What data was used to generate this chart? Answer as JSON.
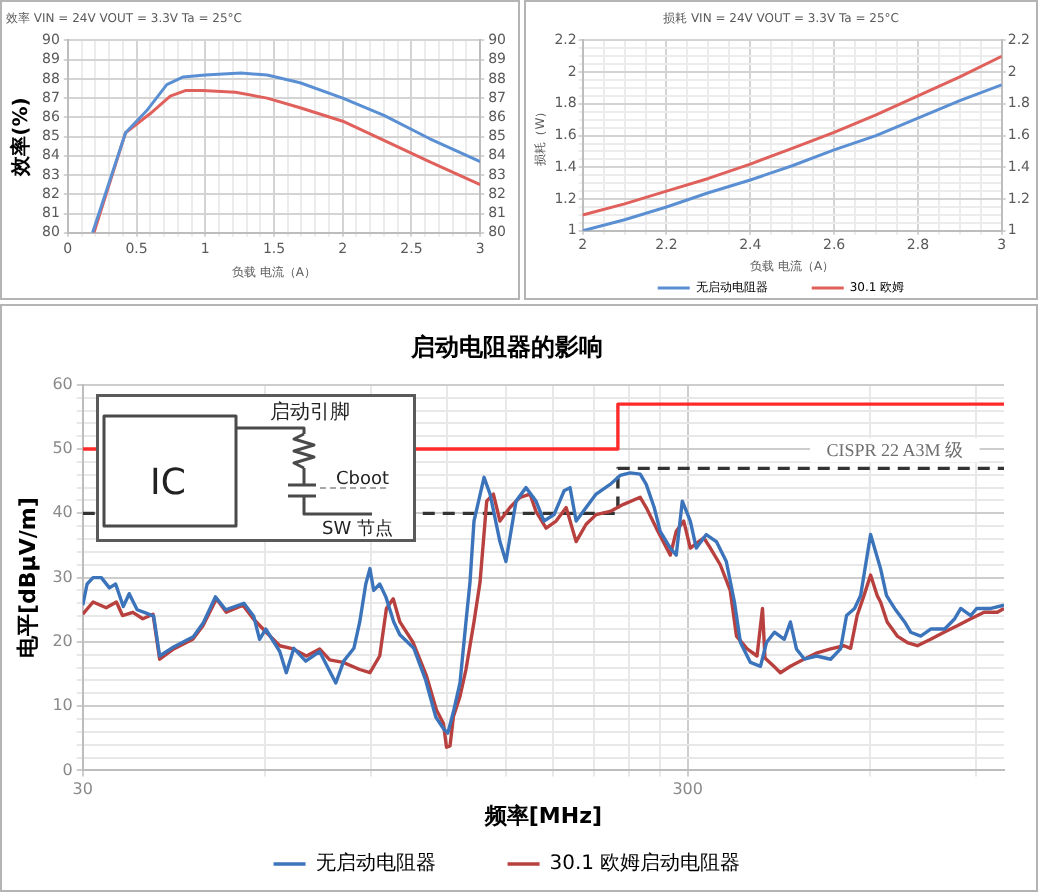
{
  "chart_data": [
    {
      "type": "line",
      "title": "效率 VIN = 24V VOUT = 3.3V Ta = 25°C",
      "xlabel": "负载 电流（A）",
      "ylabel": "效率(%)",
      "series": [
        {
          "color": "#5b8fd3",
          "x": [
            0.18,
            0.42,
            0.58,
            0.72,
            0.84,
            1.0,
            1.26,
            1.45,
            1.69,
            2.0,
            2.3,
            2.63,
            3.0
          ],
          "values": [
            80,
            85.2,
            86.4,
            87.7,
            88.1,
            88.2,
            88.3,
            88.2,
            87.8,
            87.0,
            86.1,
            84.9,
            83.7
          ]
        },
        {
          "color": "#e0605c",
          "x": [
            0.19,
            0.42,
            0.6,
            0.745,
            0.86,
            0.98,
            1.22,
            1.45,
            1.69,
            2.0,
            2.3,
            2.63,
            3.0
          ],
          "values": [
            80,
            85.2,
            86.2,
            87.1,
            87.4,
            87.4,
            87.3,
            87.0,
            86.5,
            85.8,
            84.8,
            83.7,
            82.5
          ]
        }
      ],
      "xlim": [
        0,
        3
      ],
      "xticks": [
        0,
        {
          "value": 0.1,
          "label": null
        },
        {
          "value": 0.2,
          "label": null
        },
        {
          "value": 0.3,
          "label": null
        },
        {
          "value": 0.4,
          "label": null
        },
        0.5,
        {
          "value": 0.6,
          "label": null
        },
        {
          "value": 0.7,
          "label": null
        },
        {
          "value": 0.8,
          "label": null
        },
        {
          "value": 0.9,
          "label": null
        },
        1,
        {
          "value": 1.1,
          "label": null
        },
        {
          "value": 1.2,
          "label": null
        },
        {
          "value": 1.3,
          "label": null
        },
        {
          "value": 1.4,
          "label": null
        },
        1.5,
        {
          "value": 1.6,
          "label": null
        },
        {
          "value": 1.7,
          "label": null
        },
        {
          "value": 1.8,
          "label": null
        },
        {
          "value": 1.9,
          "label": null
        },
        2,
        {
          "value": 2.1,
          "label": null
        },
        {
          "value": 2.2,
          "label": null
        },
        {
          "value": 2.3,
          "label": null
        },
        {
          "value": 2.4,
          "label": null
        },
        2.5,
        {
          "value": 2.6,
          "label": null
        },
        {
          "value": 2.7,
          "label": null
        },
        {
          "value": 2.8,
          "label": null
        },
        {
          "value": 2.9,
          "label": null
        },
        3
      ],
      "ylim": [
        80,
        90
      ],
      "yticks": [
        80,
        81,
        82,
        83,
        84,
        85,
        86,
        87,
        88,
        89,
        90
      ],
      "y2lim": [
        80,
        90
      ],
      "y2ticks": [
        80,
        81,
        82,
        83,
        84,
        85,
        86,
        87,
        88,
        89,
        90
      ],
      "grid": true,
      "marker": "none"
    },
    {
      "type": "line",
      "title": "损耗 VIN = 24V VOUT = 3.3V Ta = 25°C",
      "xlabel": "负载 电流（A）",
      "ylabel": "损耗（W）",
      "series": [
        {
          "name": "无启动电阻器",
          "color": "#5b8fd3",
          "x": [
            2,
            2.1,
            2.2,
            2.3,
            2.4,
            2.5,
            2.6,
            2.7,
            2.8,
            2.9,
            3
          ],
          "values": [
            1.0,
            1.07,
            1.15,
            1.24,
            1.32,
            1.41,
            1.51,
            1.6,
            1.71,
            1.82,
            1.92
          ]
        },
        {
          "name": "30.1 欧姆",
          "color": "#e0605c",
          "x": [
            2,
            2.1,
            2.2,
            2.3,
            2.4,
            2.5,
            2.6,
            2.7,
            2.8,
            2.9,
            3
          ],
          "values": [
            1.1,
            1.17,
            1.25,
            1.33,
            1.42,
            1.52,
            1.62,
            1.73,
            1.85,
            1.97,
            2.1
          ]
        }
      ],
      "xlim": [
        2,
        3
      ],
      "xticks": [
        2,
        {
          "value": 2.05,
          "label": null
        },
        {
          "value": 2.1,
          "label": null
        },
        {
          "value": 2.15,
          "label": null
        },
        2.2,
        {
          "value": 2.25,
          "label": null
        },
        {
          "value": 2.3,
          "label": null
        },
        {
          "value": 2.35,
          "label": null
        },
        2.4,
        {
          "value": 2.45,
          "label": null
        },
        {
          "value": 2.5,
          "label": null
        },
        {
          "value": 2.55,
          "label": null
        },
        2.6,
        {
          "value": 2.65,
          "label": null
        },
        {
          "value": 2.7,
          "label": null
        },
        {
          "value": 2.75,
          "label": null
        },
        2.8,
        {
          "value": 2.85,
          "label": null
        },
        {
          "value": 2.9,
          "label": null
        },
        {
          "value": 2.95,
          "label": null
        },
        3
      ],
      "ylim": [
        1,
        2.2
      ],
      "yticks": [
        1,
        {
          "value": 1.05,
          "label": null
        },
        {
          "value": 1.1,
          "label": null
        },
        {
          "value": 1.15,
          "label": null
        },
        1.2,
        {
          "value": 1.25,
          "label": null
        },
        {
          "value": 1.3,
          "label": null
        },
        {
          "value": 1.35,
          "label": null
        },
        1.4,
        {
          "value": 1.45,
          "label": null
        },
        {
          "value": 1.5,
          "label": null
        },
        {
          "value": 1.55,
          "label": null
        },
        1.6,
        {
          "value": 1.65,
          "label": null
        },
        {
          "value": 1.7,
          "label": null
        },
        {
          "value": 1.75,
          "label": null
        },
        1.8,
        {
          "value": 1.85,
          "label": null
        },
        {
          "value": 1.9,
          "label": null
        },
        {
          "value": 1.95,
          "label": null
        },
        2,
        {
          "value": 2.05,
          "label": null
        },
        {
          "value": 2.1,
          "label": null
        },
        {
          "value": 2.15,
          "label": null
        },
        2.2
      ],
      "y2lim": [
        1,
        2.2
      ],
      "y2ticks": [
        1,
        1.2,
        1.4,
        1.6,
        1.8,
        2,
        2.2
      ],
      "grid": true,
      "marker": "none",
      "legend": "bottom"
    },
    {
      "type": "line",
      "title": "启动电阻器的影响",
      "xlabel": "频率[MHz]",
      "ylabel": "电平[dBμV/m]",
      "log": "x",
      "series": [
        {
          "name": "无启动电阻器",
          "color": "#3c74bb",
          "x": [
            30,
            30.5,
            31.2,
            32.2,
            33.2,
            34,
            35,
            35.8,
            36.9,
            38.1,
            39.3,
            40.2,
            42.4,
            45.7,
            47.5,
            49.7,
            51.7,
            55.4,
            57.5,
            58.8,
            60.2,
            63.5,
            65.1,
            67,
            70.1,
            73.9,
            78.6,
            81,
            84.2,
            86.1,
            88.1,
            89.5,
            90.8,
            92.9,
            95.1,
            98,
            100.3,
            105.8,
            110.7,
            115,
            118.6,
            120.4,
            123.2,
            126.1,
            129,
            131,
            133,
            138.2,
            141.4,
            146.8,
            150.2,
            156.1,
            162.1,
            168.4,
            173.6,
            180.4,
            187.4,
            191.7,
            196.2,
            203.8,
            211.7,
            223.3,
            232,
            241,
            250.4,
            256.2,
            264.1,
            270.2,
            280.8,
            287.2,
            293.9,
            303,
            310,
            322,
            334.6,
            347.5,
            358.4,
            366.7,
            380.9,
            395.8,
            404.9,
            417.4,
            433.4,
            443.5,
            453.8,
            468,
            489.9,
            516.9,
            536.8,
            549.2,
            566.2,
            579.4,
            601.8,
            625.1,
            639.5,
            659.5,
            685.1,
            701,
            728.3,
            756.5,
            797.9,
            829,
            848.2,
            881.2,
            901.6,
            951,
            1000
          ],
          "values": [
            25.7,
            29,
            30,
            30,
            28.4,
            29,
            25.5,
            27.5,
            25,
            24.5,
            24,
            17.8,
            19.2,
            20.8,
            23,
            27,
            25,
            26,
            24,
            20.4,
            22,
            18.5,
            15.2,
            19,
            17,
            18.5,
            13.6,
            17,
            19,
            23.1,
            29,
            31.4,
            28,
            29,
            27,
            23.1,
            21.1,
            19,
            14,
            8.3,
            6.4,
            5.8,
            9.4,
            13.6,
            23.1,
            29.3,
            38.8,
            45.6,
            43,
            35.6,
            32.5,
            41.9,
            44,
            41.9,
            38.8,
            39.8,
            43.5,
            44,
            38.8,
            40.9,
            43,
            44.5,
            45.9,
            46.3,
            46.1,
            44.5,
            40.9,
            37.2,
            34.6,
            33.5,
            41.9,
            38.8,
            34.6,
            36.7,
            35.6,
            32.5,
            26.2,
            19.9,
            16.8,
            16.2,
            19.9,
            21.5,
            20.4,
            23.1,
            18.9,
            17.3,
            17.8,
            17.3,
            18.9,
            24.1,
            25.2,
            27.2,
            36.7,
            31.4,
            27.2,
            25.2,
            23.1,
            21.5,
            20.9,
            22,
            22,
            23.6,
            25.2,
            24.1,
            25.2,
            25.2,
            25.7
          ]
        },
        {
          "name": "30.1 欧姆启动电阻器",
          "color": "#b8403e",
          "x": [
            30,
            31.2,
            32.8,
            34.1,
            34.9,
            36.3,
            37.7,
            39.2,
            40.2,
            42.4,
            45.6,
            47.4,
            49.9,
            51.8,
            55.2,
            57.4,
            60.3,
            63.5,
            66.8,
            70.3,
            73.9,
            76.8,
            80.8,
            86.1,
            89.5,
            92.9,
            95.3,
            97.8,
            100.3,
            105.5,
            111,
            115.3,
            118.4,
            119.8,
            121.4,
            123,
            126.1,
            129,
            133,
            136.1,
            139.6,
            143.2,
            146.8,
            152.5,
            158.5,
            164.6,
            168.4,
            175,
            181.8,
            188.9,
            196.2,
            203.8,
            211.7,
            223.3,
            235,
            250.4,
            256.2,
            266.2,
            280.8,
            287.2,
            295.5,
            303,
            318.9,
            327,
            339.6,
            352.7,
            361.2,
            376.2,
            390.6,
            398.8,
            402.6,
            416.4,
            426.9,
            443.5,
            466.8,
            491,
            516.9,
            543.9,
            557.7,
            571.8,
            586.8,
            601.8,
            617.1,
            625.1,
            641,
            666.1,
            692,
            719,
            756.5,
            796,
            837,
            881.2,
            927,
            975,
            1000
          ],
          "values": [
            24.3,
            26.2,
            25.3,
            26.2,
            24.1,
            24.6,
            23.6,
            24.3,
            17.3,
            18.9,
            20.4,
            22.5,
            26.7,
            24.6,
            25.7,
            23.6,
            21.5,
            19.4,
            18.9,
            17.8,
            18.9,
            17.2,
            16.8,
            15.7,
            15.2,
            17.8,
            25.2,
            26.7,
            23.1,
            19.9,
            14.7,
            9.4,
            7.3,
            3.6,
            3.8,
            8.4,
            11.5,
            15.7,
            23.1,
            29.3,
            41.9,
            43,
            38.8,
            40.9,
            42.5,
            43,
            40.3,
            37.7,
            38.8,
            40.9,
            35.6,
            38.3,
            39.8,
            40.3,
            41.4,
            42.5,
            40.9,
            37.7,
            33.5,
            37.2,
            38.8,
            34.6,
            36.2,
            34.6,
            32,
            28,
            20.9,
            18.9,
            17.8,
            25.2,
            17.5,
            16.2,
            15.2,
            16.2,
            17.3,
            18.3,
            18.9,
            19.4,
            19,
            24.1,
            27.2,
            30.4,
            27.2,
            26.2,
            23.1,
            20.9,
            19.9,
            19.4,
            20.4,
            21.5,
            22.5,
            23.6,
            24.6,
            24.6,
            25.2
          ]
        },
        {
          "type": "step",
          "color": "#ff2b2b",
          "x": [
            30,
            230,
            1000
          ],
          "values": [
            50,
            57,
            57
          ]
        },
        {
          "type": "step",
          "color": "#333333",
          "line_style": "dashed",
          "x": [
            30,
            230,
            1000
          ],
          "values": [
            40,
            47,
            47
          ]
        }
      ],
      "xlim": [
        30,
        1000
      ],
      "xticks": [
        30,
        {
          "value": 60,
          "label": null
        },
        {
          "value": 90,
          "label": null
        },
        {
          "value": 120,
          "label": null
        },
        {
          "value": 150,
          "label": null
        },
        {
          "value": 180,
          "label": null
        },
        {
          "value": 210,
          "label": null
        },
        {
          "value": 240,
          "label": null
        },
        {
          "value": 270,
          "label": null
        },
        300,
        {
          "value": 600,
          "label": null
        },
        {
          "value": 900,
          "label": null
        }
      ],
      "ylim": [
        0,
        60
      ],
      "yticks": [
        0,
        {
          "value": 2,
          "label": null
        },
        {
          "value": 4,
          "label": null
        },
        {
          "value": 6,
          "label": null
        },
        {
          "value": 8,
          "label": null
        },
        10,
        {
          "value": 12,
          "label": null
        },
        {
          "value": 14,
          "label": null
        },
        {
          "value": 16,
          "label": null
        },
        {
          "value": 18,
          "label": null
        },
        20,
        {
          "value": 22,
          "label": null
        },
        {
          "value": 24,
          "label": null
        },
        {
          "value": 26,
          "label": null
        },
        {
          "value": 28,
          "label": null
        },
        30,
        {
          "value": 32,
          "label": null
        },
        {
          "value": 34,
          "label": null
        },
        {
          "value": 36,
          "label": null
        },
        {
          "value": 38,
          "label": null
        },
        40,
        {
          "value": 42,
          "label": null
        },
        {
          "value": 44,
          "label": null
        },
        {
          "value": 46,
          "label": null
        },
        {
          "value": 48,
          "label": null
        },
        50,
        {
          "value": 52,
          "label": null
        },
        {
          "value": 54,
          "label": null
        },
        {
          "value": 56,
          "label": null
        },
        {
          "value": 58,
          "label": null
        },
        60
      ],
      "grid": true,
      "marker": "none",
      "legend": "bottom",
      "annotations": [
        "IC",
        "启动引脚",
        "Cboot",
        "SW 节点",
        {
          "text": "CISPR 22 A3M 级",
          "x": 660,
          "y": 47
        }
      ]
    }
  ]
}
